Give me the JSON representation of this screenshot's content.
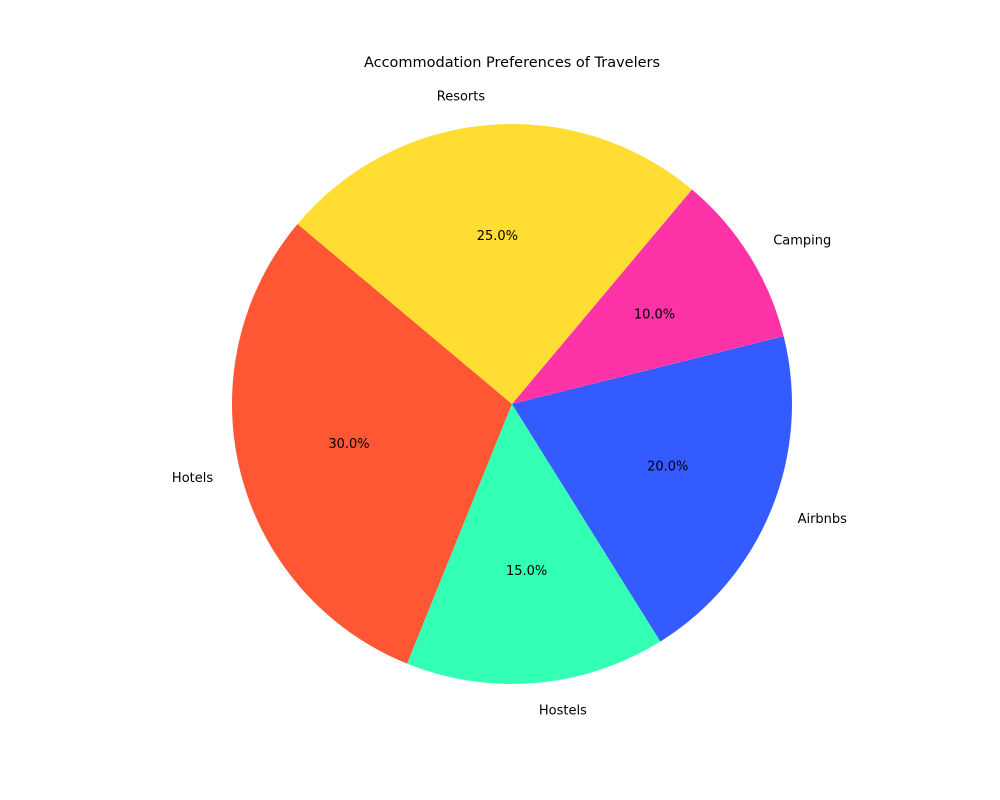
{
  "chart_data": {
    "type": "pie",
    "title": "Accommodation Preferences of Travelers",
    "categories": [
      "Hotels",
      "Hostels",
      "Airbnbs",
      "Camping",
      "Resorts"
    ],
    "values": [
      30,
      15,
      20,
      10,
      25
    ],
    "percent_labels": [
      "30.0%",
      "15.0%",
      "20.0%",
      "10.0%",
      "25.0%"
    ],
    "colors": [
      "#FF5733",
      "#33FFB5",
      "#335BFF",
      "#FF33A8",
      "#FFDD33"
    ],
    "start_angle_deg": 140,
    "direction": "counterclockwise",
    "legend": "none"
  }
}
